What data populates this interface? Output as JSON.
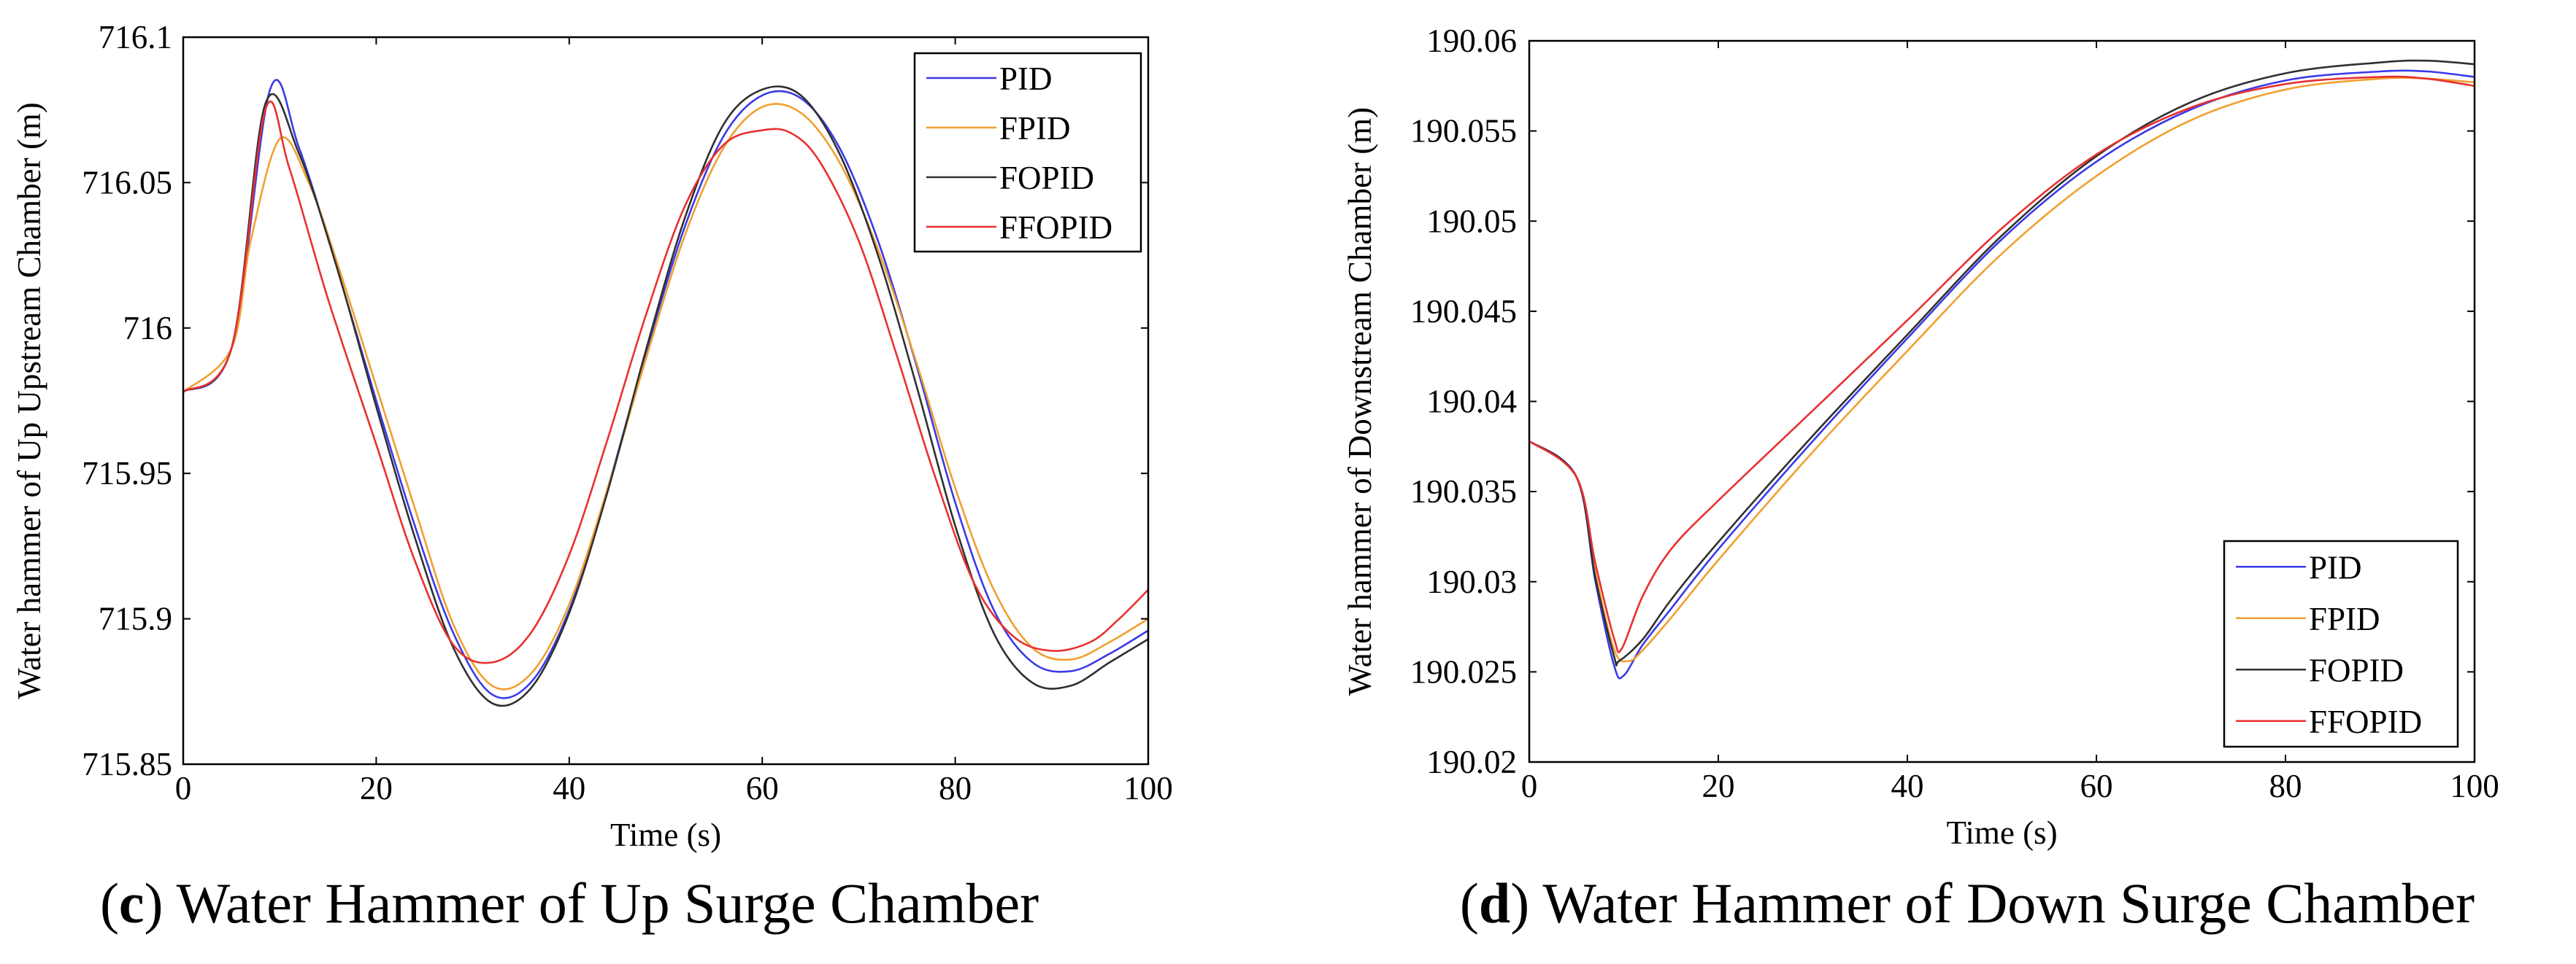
{
  "chart_data": [
    {
      "type": "line",
      "panel": "c",
      "caption": "Water Hammer of Up Surge Chamber",
      "xlabel": "Time (s)",
      "ylabel": "Water hammer of Up Upstream Chamber (m)",
      "xlim": [
        0,
        100
      ],
      "ylim": [
        715.85,
        716.1
      ],
      "xticks": [
        0,
        20,
        40,
        60,
        80,
        100
      ],
      "xtick_labels": [
        "0",
        "20",
        "40",
        "60",
        "80",
        "100"
      ],
      "yticks": [
        715.85,
        715.9,
        715.95,
        716,
        716.05,
        716.1
      ],
      "ytick_labels": [
        "715.85",
        "715.9",
        "715.95",
        "716",
        "716.05",
        "716.1"
      ],
      "legend_position": "top-right",
      "grid": false,
      "series": [
        {
          "name": "PID",
          "color": "#3a3ae8",
          "x": [
            0,
            5,
            9,
            12,
            16,
            20,
            24,
            28,
            32,
            36,
            40,
            44,
            48,
            52,
            56,
            60,
            64,
            68,
            72,
            76,
            80,
            84,
            88,
            92,
            96,
            100
          ],
          "y": [
            715.978,
            715.993,
            716.082,
            716.062,
            716.02,
            715.975,
            715.932,
            715.895,
            715.874,
            715.878,
            715.903,
            715.945,
            715.992,
            716.035,
            716.066,
            716.08,
            716.079,
            716.062,
            716.03,
            715.987,
            715.94,
            715.903,
            715.885,
            715.882,
            715.888,
            715.896
          ]
        },
        {
          "name": "FPID",
          "color": "#f0a030",
          "x": [
            0,
            5,
            7,
            10,
            13,
            16,
            20,
            24,
            28,
            32,
            36,
            40,
            44,
            48,
            52,
            56,
            60,
            64,
            68,
            72,
            76,
            80,
            84,
            88,
            92,
            96,
            100
          ],
          "y": [
            715.978,
            715.993,
            716.03,
            716.065,
            716.05,
            716.022,
            715.98,
            715.938,
            715.898,
            715.877,
            715.881,
            715.905,
            715.945,
            715.99,
            716.032,
            716.062,
            716.076,
            716.074,
            716.057,
            716.027,
            715.988,
            715.945,
            715.91,
            715.89,
            715.886,
            715.892,
            715.9
          ]
        },
        {
          "name": "FOPID",
          "color": "#303030",
          "x": [
            0,
            5,
            8.5,
            12,
            16,
            20,
            24,
            28,
            32,
            36,
            40,
            44,
            48,
            52,
            56,
            60,
            64,
            68,
            72,
            76,
            80,
            84,
            88,
            92,
            96,
            100
          ],
          "y": [
            715.978,
            715.993,
            716.077,
            716.06,
            716.02,
            715.973,
            715.928,
            715.89,
            715.871,
            715.876,
            715.902,
            715.944,
            715.993,
            716.038,
            716.07,
            716.082,
            716.08,
            716.06,
            716.025,
            715.98,
            715.932,
            715.895,
            715.878,
            715.877,
            715.885,
            715.893
          ]
        },
        {
          "name": "FFOPID",
          "color": "#e83030",
          "x": [
            0,
            5,
            8.5,
            11,
            15,
            20,
            24,
            28,
            32,
            36,
            40,
            44,
            48,
            52,
            56,
            60,
            63,
            66,
            70,
            74,
            78,
            82,
            86,
            90,
            94,
            97,
            100
          ],
          "y": [
            715.978,
            715.993,
            716.075,
            716.055,
            716.01,
            715.96,
            715.92,
            715.891,
            715.885,
            715.895,
            715.922,
            715.962,
            716.005,
            716.042,
            716.063,
            716.068,
            716.067,
            716.057,
            716.03,
            715.99,
            715.948,
            715.912,
            715.894,
            715.889,
            715.892,
            715.9,
            715.91
          ]
        }
      ]
    },
    {
      "type": "line",
      "panel": "d",
      "caption": "Water Hammer of Down Surge Chamber",
      "xlabel": "Time (s)",
      "ylabel": "Water hammer of Downstream Chamber (m)",
      "xlim": [
        0,
        100
      ],
      "ylim": [
        190.02,
        190.06
      ],
      "xticks": [
        0,
        20,
        40,
        60,
        80,
        100
      ],
      "xtick_labels": [
        "0",
        "20",
        "40",
        "60",
        "80",
        "100"
      ],
      "yticks": [
        190.02,
        190.025,
        190.03,
        190.035,
        190.04,
        190.045,
        190.05,
        190.055,
        190.06
      ],
      "ytick_labels": [
        "190.02",
        "190.025",
        "190.03",
        "190.035",
        "190.04",
        "190.045",
        "190.05",
        "190.055",
        "190.06"
      ],
      "legend_position": "bottom-right",
      "grid": false,
      "series": [
        {
          "name": "PID",
          "color": "#3a3ae8",
          "x": [
            0,
            5,
            7,
            9,
            10,
            12,
            15,
            20,
            30,
            40,
            50,
            60,
            70,
            80,
            90,
            95,
            100
          ],
          "y": [
            190.0378,
            190.0358,
            190.03,
            190.0253,
            190.0248,
            190.0265,
            190.0285,
            190.0318,
            190.0378,
            190.0435,
            190.049,
            190.0533,
            190.0562,
            190.0578,
            190.0583,
            190.0583,
            190.058
          ]
        },
        {
          "name": "FPID",
          "color": "#f0a030",
          "x": [
            0,
            5,
            7,
            9,
            10.5,
            12,
            15,
            20,
            30,
            40,
            50,
            60,
            70,
            80,
            90,
            95,
            100
          ],
          "y": [
            190.0378,
            190.0358,
            190.0305,
            190.0262,
            190.0256,
            190.0262,
            190.028,
            190.0312,
            190.0372,
            190.0428,
            190.0482,
            190.0525,
            190.0556,
            190.0573,
            190.0579,
            190.0579,
            190.0577
          ]
        },
        {
          "name": "FOPID",
          "color": "#303030",
          "x": [
            0,
            5,
            7,
            9,
            9.5,
            12,
            15,
            20,
            30,
            40,
            50,
            60,
            70,
            80,
            90,
            95,
            100
          ],
          "y": [
            190.0378,
            190.0358,
            190.0302,
            190.0258,
            190.0256,
            190.0268,
            190.029,
            190.0322,
            190.0381,
            190.0437,
            190.0492,
            190.0536,
            190.0566,
            190.0582,
            190.0588,
            190.0589,
            190.0587
          ]
        },
        {
          "name": "FFOPID",
          "color": "#e83030",
          "x": [
            0,
            5,
            7,
            9,
            9.8,
            12,
            15,
            20,
            30,
            40,
            50,
            60,
            70,
            80,
            90,
            95,
            100
          ],
          "y": [
            190.0378,
            190.0358,
            190.031,
            190.0268,
            190.0263,
            190.0292,
            190.0318,
            190.0345,
            190.0395,
            190.0445,
            190.0496,
            190.0537,
            190.0563,
            190.0576,
            190.058,
            190.0579,
            190.0575
          ]
        }
      ]
    }
  ]
}
